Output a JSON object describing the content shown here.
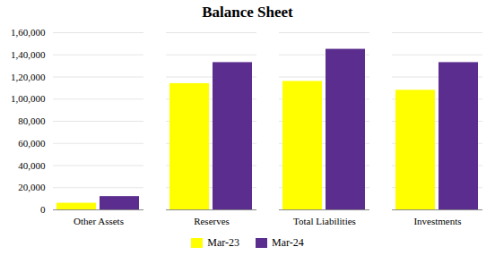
{
  "chart_data": {
    "type": "bar",
    "title": "Balance Sheet",
    "categories": [
      "Other Assets",
      "Reserves",
      "Total Liabilities",
      "Investments"
    ],
    "series": [
      {
        "name": "Mar-23",
        "color": "#FFFF00",
        "values": [
          6000,
          114000,
          116000,
          108000
        ]
      },
      {
        "name": "Mar-24",
        "color": "#5B2D8E",
        "values": [
          12000,
          133000,
          145000,
          133000
        ]
      }
    ],
    "ylim": [
      0,
      160000
    ],
    "yticks": [
      0,
      {
        "value": 20000,
        "label": "20,000"
      },
      {
        "value": 40000,
        "label": "40,000"
      },
      {
        "value": 60000,
        "label": "60,000"
      },
      {
        "value": 80000,
        "label": "80,000"
      },
      {
        "value": 100000,
        "label": "1,00,000"
      },
      {
        "value": 120000,
        "label": "1,20,000"
      },
      {
        "value": 140000,
        "label": "1,40,000"
      },
      {
        "value": 160000,
        "label": "1,60,000"
      }
    ],
    "grid": true,
    "legend": "bottom"
  }
}
